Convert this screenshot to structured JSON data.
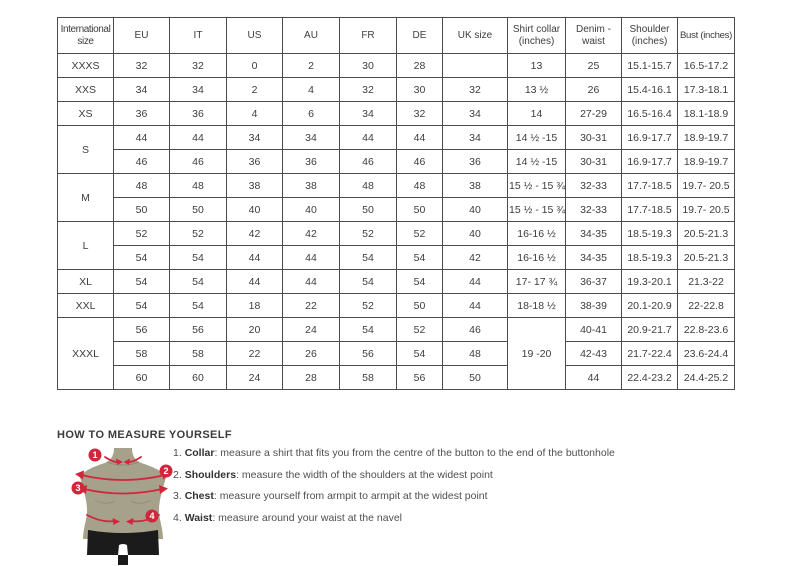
{
  "table": {
    "headers": [
      "International size",
      "EU",
      "IT",
      "US",
      "AU",
      "FR",
      "DE",
      "UK size",
      "Shirt collar (inches)",
      "Denim - waist",
      "Shoulder (inches)",
      "Bust (inches)"
    ],
    "rows": [
      [
        {
          "t": "XXXS"
        },
        "32",
        "32",
        "0",
        "2",
        "30",
        "28",
        "",
        "13",
        "25",
        "15.1-15.7",
        "16.5-17.2"
      ],
      [
        {
          "t": "XXS"
        },
        "34",
        "34",
        "2",
        "4",
        "32",
        "30",
        "32",
        "13 ½",
        "26",
        "15.4-16.1",
        "17.3-18.1"
      ],
      [
        {
          "t": "XS"
        },
        "36",
        "36",
        "4",
        "6",
        "34",
        "32",
        "34",
        "14",
        "27-29",
        "16.5-16.4",
        "18.1-18.9"
      ],
      [
        {
          "t": "S",
          "rs": 2
        },
        "44",
        "44",
        "34",
        "34",
        "44",
        "44",
        "34",
        "14 ½ -15",
        "30-31",
        "16.9-17.7",
        "18.9-19.7"
      ],
      [
        "46",
        "46",
        "36",
        "36",
        "46",
        "46",
        "36",
        "14 ½ -15",
        "30-31",
        "16.9-17.7",
        "18.9-19.7"
      ],
      [
        {
          "t": "M",
          "rs": 2
        },
        "48",
        "48",
        "38",
        "38",
        "48",
        "48",
        "38",
        "15 ½ - 15 ¾",
        "32-33",
        "17.7-18.5",
        "19.7- 20.5"
      ],
      [
        "50",
        "50",
        "40",
        "40",
        "50",
        "50",
        "40",
        "15 ½ - 15 ¾",
        "32-33",
        "17.7-18.5",
        "19.7- 20.5"
      ],
      [
        {
          "t": "L",
          "rs": 2
        },
        "52",
        "52",
        "42",
        "42",
        "52",
        "52",
        "40",
        "16-16 ½",
        "34-35",
        "18.5-19.3",
        "20.5-21.3"
      ],
      [
        "54",
        "54",
        "44",
        "44",
        "54",
        "54",
        "42",
        "16-16 ½",
        "34-35",
        "18.5-19.3",
        "20.5-21.3"
      ],
      [
        {
          "t": "XL"
        },
        "54",
        "54",
        "44",
        "44",
        "54",
        "54",
        "44",
        "17- 17 ¾",
        "36-37",
        "19.3-20.1",
        "21.3-22"
      ],
      [
        {
          "t": "XXL"
        },
        "54",
        "54",
        "18",
        "22",
        "52",
        "50",
        "44",
        "18-18 ½",
        "38-39",
        "20.1-20.9",
        "22-22.8"
      ],
      [
        {
          "t": "XXXL",
          "rs": 3
        },
        "56",
        "56",
        "20",
        "24",
        "54",
        "52",
        "46",
        {
          "t": "19 -20",
          "rs": 3
        },
        "40-41",
        "20.9-21.7",
        "22.8-23.6"
      ],
      [
        "58",
        "58",
        "22",
        "26",
        "56",
        "54",
        "48",
        "42-43",
        "21.7-22.4",
        "23.6-24.4"
      ],
      [
        "60",
        "60",
        "24",
        "28",
        "58",
        "56",
        "50",
        "44",
        "22.4-23.2",
        "24.4-25.2"
      ]
    ]
  },
  "measure": {
    "title": "HOW TO MEASURE YOURSELF",
    "items": [
      {
        "num": "1.",
        "label": "Collar",
        "text": ": measure a shirt that fits you from the centre of the button to the end of the buttonhole"
      },
      {
        "num": "2.",
        "label": "Shoulders",
        "text": ": measure the width of the shoulders at the widest point"
      },
      {
        "num": "3.",
        "label": "Chest",
        "text": ": measure yourself from armpit to armpit at the widest point"
      },
      {
        "num": "4.",
        "label": "Waist",
        "text": ": measure around your waist at the navel"
      }
    ]
  },
  "figure": {
    "badges": [
      "1",
      "2",
      "3",
      "4"
    ]
  },
  "colors": {
    "accent_red": "#d0273c",
    "torso": "#a6a18b",
    "shorts": "#1b1b1b",
    "table_border": "#4c4c4c",
    "table_text": "#3d3d3d"
  }
}
